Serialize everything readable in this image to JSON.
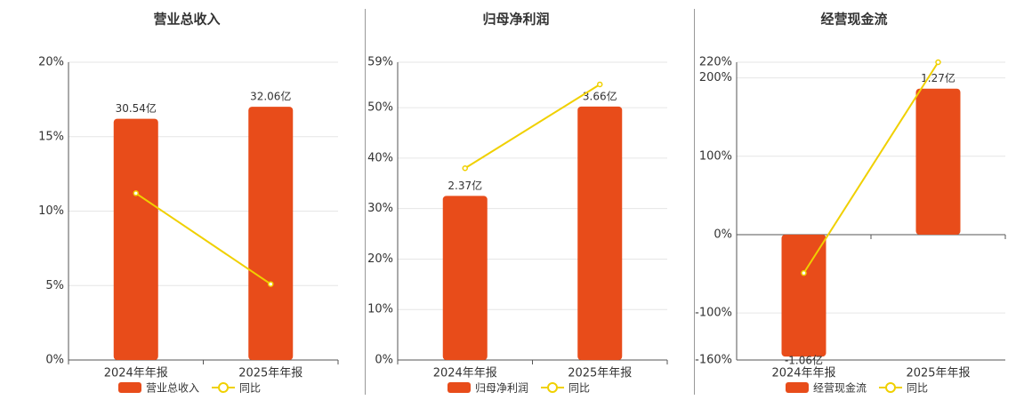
{
  "chart_data": [
    {
      "type": "bar",
      "title": "营业总收入",
      "categories": [
        "2024年年报",
        "2025年年报"
      ],
      "series": [
        {
          "name": "营业总收入",
          "color": "#e84c1a",
          "axis": "y2",
          "values": [
            30.54,
            32.06
          ],
          "value_labels": [
            "30.54亿",
            "32.06亿"
          ]
        },
        {
          "name": "同比",
          "color": "#f0d000",
          "type": "line",
          "values": [
            11.2,
            5.1
          ]
        }
      ],
      "ylim": [
        0,
        20
      ],
      "yticks": [
        {
          "value": 0,
          "label": "0%"
        },
        {
          "value": 5,
          "label": "5%"
        },
        {
          "value": 10,
          "label": "10%"
        },
        {
          "value": 15,
          "label": "15%"
        },
        {
          "value": 20,
          "label": "20%"
        }
      ],
      "y2lim": [
        0,
        37.7
      ],
      "grid": true
    },
    {
      "type": "bar",
      "title": "归母净利润",
      "categories": [
        "2024年年报",
        "2025年年报"
      ],
      "series": [
        {
          "name": "归母净利润",
          "color": "#e84c1a",
          "axis": "y2",
          "values": [
            2.37,
            3.66
          ],
          "value_labels": [
            "2.37亿",
            "3.66亿"
          ]
        },
        {
          "name": "同比",
          "color": "#f0d000",
          "type": "line",
          "values": [
            38.0,
            54.6
          ]
        }
      ],
      "ylim": [
        0,
        59
      ],
      "yticks": [
        {
          "value": 0,
          "label": "0%"
        },
        {
          "value": 10,
          "label": "10%"
        },
        {
          "value": 20,
          "label": "20%"
        },
        {
          "value": 30,
          "label": "30%"
        },
        {
          "value": 40,
          "label": "40%"
        },
        {
          "value": 50,
          "label": "50%"
        },
        {
          "value": 59,
          "label": "59%"
        }
      ],
      "y2lim": [
        0,
        4.3
      ],
      "grid": true
    },
    {
      "type": "bar",
      "title": "经营现金流",
      "categories": [
        "2024年年报",
        "2025年年报"
      ],
      "series": [
        {
          "name": "经营现金流",
          "color": "#e84c1a",
          "axis": "y2",
          "values": [
            -1.06,
            1.27
          ],
          "value_labels": [
            "-1.06亿",
            "1.27亿"
          ]
        },
        {
          "name": "同比",
          "color": "#f0d000",
          "type": "line",
          "values": [
            -49,
            220
          ]
        }
      ],
      "ylim": [
        -160,
        220
      ],
      "yticks": [
        {
          "value": -160,
          "label": "-160%"
        },
        {
          "value": -100,
          "label": "-100%"
        },
        {
          "value": 0,
          "label": "0%"
        },
        {
          "value": 100,
          "label": "100%"
        },
        {
          "value": 200,
          "label": "200%"
        },
        {
          "value": 220,
          "label": "220%"
        }
      ],
      "y2lim": [
        -1.09,
        1.5
      ],
      "grid": true
    }
  ]
}
